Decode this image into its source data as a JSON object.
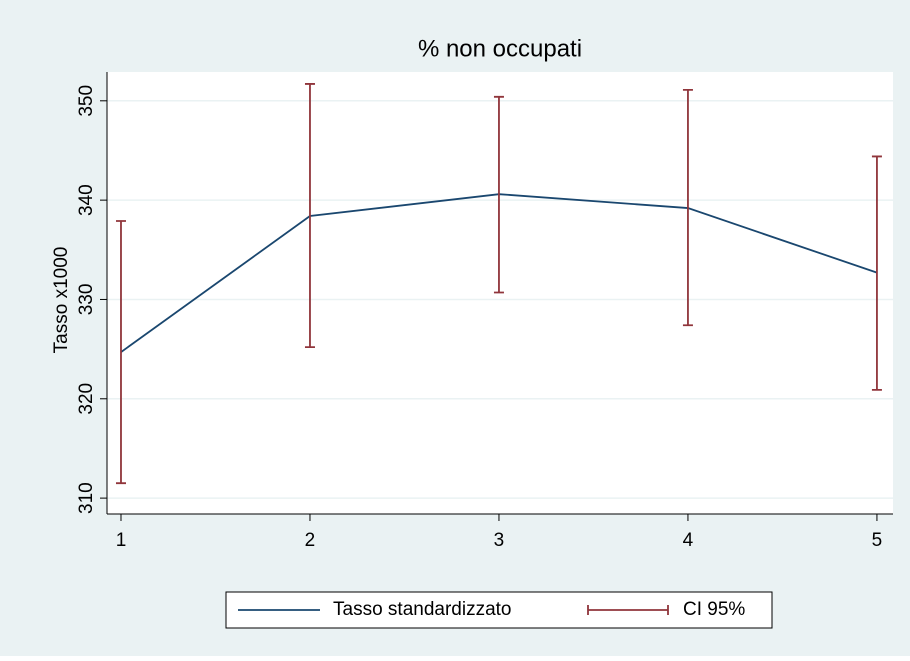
{
  "chart_data": {
    "type": "line",
    "title": "% non occupati",
    "ylabel": "Tasso x1000",
    "x": [
      1,
      2,
      3,
      4,
      5
    ],
    "series": [
      {
        "name": "Tasso standardizzato",
        "color": "#1a476f",
        "values": [
          324.7,
          338.4,
          340.6,
          339.2,
          332.7
        ]
      },
      {
        "name": "CI 95%",
        "color": "#90353b",
        "lower": [
          311.5,
          325.2,
          330.7,
          327.4,
          320.9
        ],
        "upper": [
          337.9,
          351.7,
          350.4,
          351.1,
          344.4
        ]
      }
    ],
    "xlim": [
      0.926,
      5.085
    ],
    "xticks": [
      1,
      2,
      3,
      4,
      5
    ],
    "ylim": [
      308.4,
      352.9
    ],
    "yticks": [
      310,
      320,
      330,
      340,
      350
    ],
    "grid": true,
    "legend": "bottom"
  }
}
